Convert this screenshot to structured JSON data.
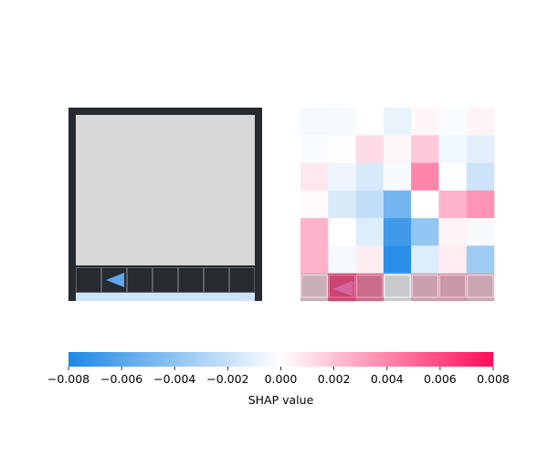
{
  "chart_data": [
    {
      "type": "image",
      "panel": "original-observation",
      "background_color": "#272b30",
      "board_color": "#d8d8d8",
      "grid_line_color": "#9aa1a8",
      "agent_color": "#5ea8f0",
      "highlight_color": "#cfe3f8",
      "rows": 7,
      "cols": 7,
      "agent": {
        "row": 6,
        "col": 1,
        "direction": "left"
      }
    },
    {
      "type": "heatmap",
      "panel": "shap-values",
      "rows": 7,
      "cols": 7,
      "values": [
        [
          -0.0004,
          -0.0003,
          0.0,
          -0.0008,
          0.0003,
          -0.0002,
          0.0004
        ],
        [
          -0.0002,
          0.0001,
          0.0012,
          0.0003,
          0.0018,
          -0.0005,
          -0.001
        ],
        [
          0.0008,
          -0.0006,
          -0.0014,
          -0.0003,
          0.004,
          0.0,
          -0.0018
        ],
        [
          0.0002,
          -0.0014,
          -0.0022,
          -0.005,
          0.0,
          0.0025,
          0.0035
        ],
        [
          0.0025,
          0.0,
          -0.0012,
          -0.0068,
          -0.0038,
          0.0004,
          -0.0003
        ],
        [
          0.0025,
          -0.0004,
          0.0006,
          -0.0075,
          -0.0012,
          0.0006,
          -0.0034
        ],
        [
          0.0012,
          0.0058,
          0.004,
          0.0,
          0.0018,
          0.0022,
          0.0016
        ]
      ],
      "overlay_alpha": 0.25,
      "colorbar": {
        "vmin": -0.008,
        "vmax": 0.008,
        "ticks": [
          -0.008,
          -0.006,
          -0.004,
          -0.002,
          0.0,
          0.002,
          0.004,
          0.006,
          0.008
        ],
        "tick_labels": [
          "−0.008",
          "−0.006",
          "−0.004",
          "−0.002",
          "0.000",
          "0.002",
          "0.004",
          "0.006",
          "0.008"
        ],
        "label": "SHAP value",
        "negative_color": "#1e88e5",
        "positive_color": "#ff0d57"
      }
    }
  ]
}
